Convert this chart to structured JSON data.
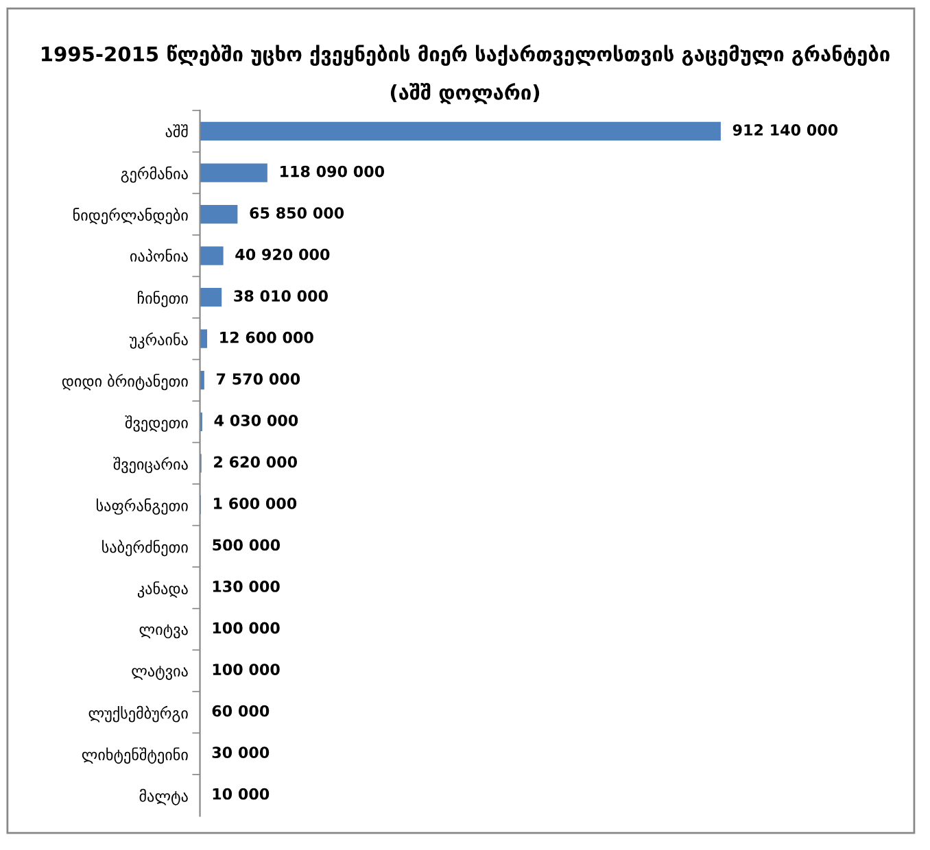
{
  "chart_data": {
    "type": "bar",
    "orientation": "horizontal",
    "title": "1995-2015 წლებში უცხო ქვეყნების მიერ საქართველოსთვის გაცემული გრანტები",
    "subtitle": "(აშშ დოლარი)",
    "categories": [
      "აშშ",
      "გერმანია",
      "ნიდერლანდები",
      "იაპონია",
      "ჩინეთი",
      "უკრაინა",
      "დიდი ბრიტანეთი",
      "შვედეთი",
      "შვეიცარია",
      "საფრანგეთი",
      "საბერძნეთი",
      "კანადა",
      "ლიტვა",
      "ლატვია",
      "ლუქსემბურგი",
      "ლიხტენშტეინი",
      "მალტა"
    ],
    "values": [
      912140000,
      118090000,
      65850000,
      40920000,
      38010000,
      12600000,
      7570000,
      4030000,
      2620000,
      1600000,
      500000,
      130000,
      100000,
      100000,
      60000,
      30000,
      10000
    ],
    "value_labels": [
      "912 140 000",
      "118 090 000",
      "65 850 000",
      "40 920 000",
      "38 010 000",
      "12 600 000",
      "7 570 000",
      "4 030 000",
      "2 620 000",
      "1 600 000",
      "500 000",
      "130 000",
      "100 000",
      "100 000",
      "60 000",
      "30 000",
      "10 000"
    ],
    "color": "#4f81bd",
    "grid": false,
    "legend": false,
    "tick_labels": "y"
  }
}
